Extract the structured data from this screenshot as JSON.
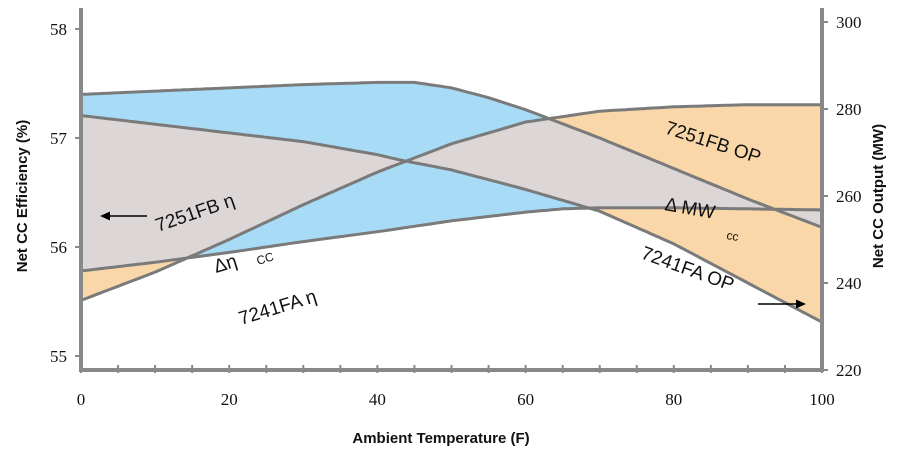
{
  "chart_data": {
    "type": "area",
    "xlabel": "Ambient Temperature (F)",
    "ylabel": "Net CC Efficiency (%)",
    "y2label": "Net CC Output (MW)",
    "xlim": [
      0,
      100
    ],
    "ylim": [
      55,
      58
    ],
    "y2lim": [
      220,
      300
    ],
    "x_ticks": [
      "0",
      "20",
      "40",
      "60",
      "80",
      "100"
    ],
    "y_ticks": [
      "55",
      "56",
      "57",
      "58"
    ],
    "y2_ticks": [
      "220",
      "240",
      "260",
      "280",
      "300"
    ],
    "grid": false,
    "colors": {
      "efficiency_band": "#a8dcf6",
      "output_band": "#f9d7a8",
      "overlap": "#ddd6d6",
      "line": "#7a7a7a",
      "axis": "#888888"
    },
    "series": [
      {
        "name": "7251FB η",
        "axis": "left",
        "x": [
          0,
          10,
          20,
          30,
          40,
          45,
          50,
          55,
          60,
          65,
          70,
          75,
          80,
          85,
          90,
          95,
          100
        ],
        "y": [
          57.4,
          57.43,
          57.46,
          57.49,
          57.51,
          57.51,
          57.46,
          57.37,
          57.26,
          57.13,
          57.0,
          56.86,
          56.72,
          56.58,
          56.44,
          56.31,
          56.18
        ]
      },
      {
        "name": "7241FA η",
        "axis": "left",
        "x": [
          0,
          10,
          20,
          30,
          40,
          50,
          60,
          65,
          70,
          80,
          90,
          100
        ],
        "y": [
          55.78,
          55.86,
          55.95,
          56.05,
          56.14,
          56.24,
          56.32,
          56.35,
          56.36,
          56.36,
          56.35,
          56.34
        ]
      },
      {
        "name": "7251FB OP",
        "axis": "right",
        "x": [
          0,
          10,
          20,
          30,
          40,
          50,
          60,
          70,
          80,
          90,
          100
        ],
        "y": [
          236.0,
          242.5,
          250.0,
          258.0,
          265.5,
          272.0,
          277.0,
          279.5,
          280.5,
          281.0,
          281.0
        ]
      },
      {
        "name": "7241FA OP",
        "axis": "right",
        "x": [
          0,
          10,
          20,
          30,
          40,
          43,
          50,
          60,
          70,
          80,
          90,
          100
        ],
        "y": [
          278.5,
          276.5,
          274.5,
          272.5,
          269.5,
          268.3,
          266.0,
          261.5,
          256.5,
          249.0,
          240.0,
          231.0
        ]
      }
    ],
    "annotations": {
      "fb_eta": "7251FB η",
      "fa_eta": "7241FA η",
      "fb_op": "7251FB OP",
      "fa_op": "7241FA OP",
      "delta_eta": "Δη",
      "delta_eta_sub": "CC",
      "delta_mw": "Δ MW",
      "delta_mw_sub": "cc"
    }
  }
}
